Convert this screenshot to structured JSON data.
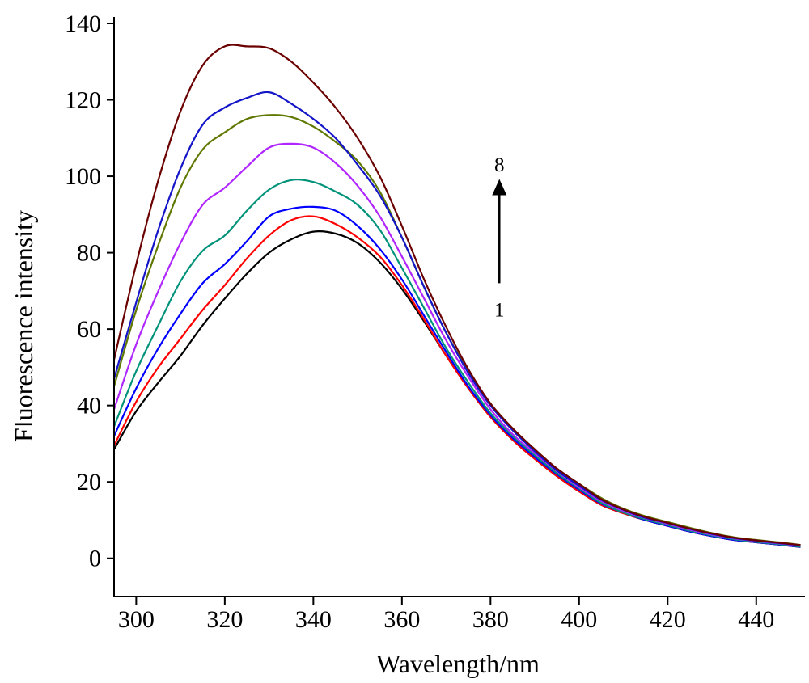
{
  "chart_data": {
    "type": "line",
    "title": "",
    "xlabel": "Wavelength/nm",
    "ylabel": "Fluorescence intensity",
    "xlim": [
      295,
      451
    ],
    "ylim": [
      -10,
      140
    ],
    "xticks": [
      300,
      320,
      340,
      360,
      380,
      400,
      420,
      440
    ],
    "yticks": [
      0,
      20,
      40,
      60,
      80,
      100,
      120,
      140
    ],
    "grid": false,
    "legend": "none",
    "x": [
      295,
      300,
      305,
      310,
      315,
      320,
      325,
      330,
      335,
      340,
      345,
      350,
      355,
      360,
      365,
      370,
      375,
      380,
      385,
      390,
      395,
      400,
      405,
      410,
      415,
      420,
      425,
      430,
      435,
      440,
      445,
      450
    ],
    "series": [
      {
        "color": "#000000",
        "values": [
          28.5,
          38.5,
          46,
          53,
          61,
          68,
          74.5,
          80,
          83.5,
          85.5,
          85,
          82.5,
          77.5,
          70.5,
          62,
          53,
          44.5,
          37,
          31,
          26,
          21.5,
          17.5,
          14,
          11.8,
          10,
          8.5,
          7,
          5.8,
          4.8,
          4.2,
          3.6,
          3.0
        ]
      },
      {
        "color": "#ff0000",
        "values": [
          29.5,
          41,
          50,
          57.5,
          65,
          71.5,
          78.5,
          84.5,
          88.5,
          89.5,
          87.5,
          84,
          79,
          71.5,
          62.5,
          53,
          44.5,
          37,
          31,
          26,
          21.5,
          17.5,
          14,
          11.8,
          10,
          8.5,
          7,
          5.8,
          4.8,
          4.2,
          3.6,
          3.0
        ]
      },
      {
        "color": "#0000ff",
        "values": [
          32,
          44.5,
          55,
          64,
          72,
          77,
          83,
          89.5,
          91.5,
          92,
          91,
          87,
          81,
          73,
          63.5,
          54,
          45,
          37.5,
          31.5,
          26.5,
          22,
          18,
          14.3,
          12,
          10,
          8.5,
          7,
          5.8,
          4.8,
          4.2,
          3.6,
          3.0
        ]
      },
      {
        "color": "#00937a",
        "values": [
          34.5,
          49,
          61,
          72.5,
          80.5,
          84.5,
          91,
          96.5,
          99,
          98.5,
          96,
          92.5,
          86,
          76,
          65.5,
          55,
          46,
          38,
          32,
          27,
          22.3,
          18.3,
          14.5,
          12,
          10.2,
          8.7,
          7.2,
          6,
          5,
          4.3,
          3.7,
          3.1
        ]
      },
      {
        "color": "#b026ff",
        "values": [
          39,
          56,
          70,
          82.5,
          92.5,
          97,
          102.5,
          107.5,
          108.5,
          107.5,
          103.5,
          97.5,
          89.5,
          79,
          68,
          57,
          47.5,
          39,
          32.5,
          27.5,
          22.8,
          18.6,
          15,
          12.4,
          10.5,
          9,
          7.5,
          6.2,
          5.2,
          4.5,
          3.9,
          3.3
        ]
      },
      {
        "color": "#5f7800",
        "values": [
          45,
          65,
          82,
          97,
          107,
          111.5,
          115,
          116,
          115.5,
          113,
          109,
          104,
          96,
          84,
          71,
          59,
          49,
          40.5,
          34,
          28.5,
          23.5,
          19.5,
          15.8,
          13,
          11,
          9.5,
          8,
          6.6,
          5.5,
          4.8,
          4.2,
          3.5
        ]
      },
      {
        "color": "#1414c8",
        "values": [
          47,
          67,
          86,
          102,
          113.5,
          118,
          120.5,
          122,
          119,
          115,
          110,
          103,
          95,
          84,
          71,
          59,
          48.5,
          40,
          33.5,
          28,
          23,
          19,
          15.3,
          12.7,
          10.6,
          9.2,
          7.7,
          6.4,
          5.3,
          4.6,
          4.0,
          3.4
        ]
      },
      {
        "color": "#6b0000",
        "values": [
          52,
          77,
          99,
          117,
          129,
          134,
          134,
          133.5,
          130,
          124.5,
          118,
          110,
          100,
          87,
          73,
          60.5,
          49.5,
          40.5,
          34,
          28.5,
          23.5,
          19.5,
          15.5,
          12.8,
          10.8,
          9.3,
          7.8,
          6.5,
          5.4,
          4.7,
          4.1,
          3.5
        ]
      }
    ],
    "annotations": [
      {
        "text": "8",
        "x": 382,
        "y": 103
      },
      {
        "text": "1",
        "x": 382,
        "y": 65
      }
    ],
    "arrow": {
      "from": [
        382,
        72
      ],
      "to": [
        382,
        98
      ]
    }
  }
}
